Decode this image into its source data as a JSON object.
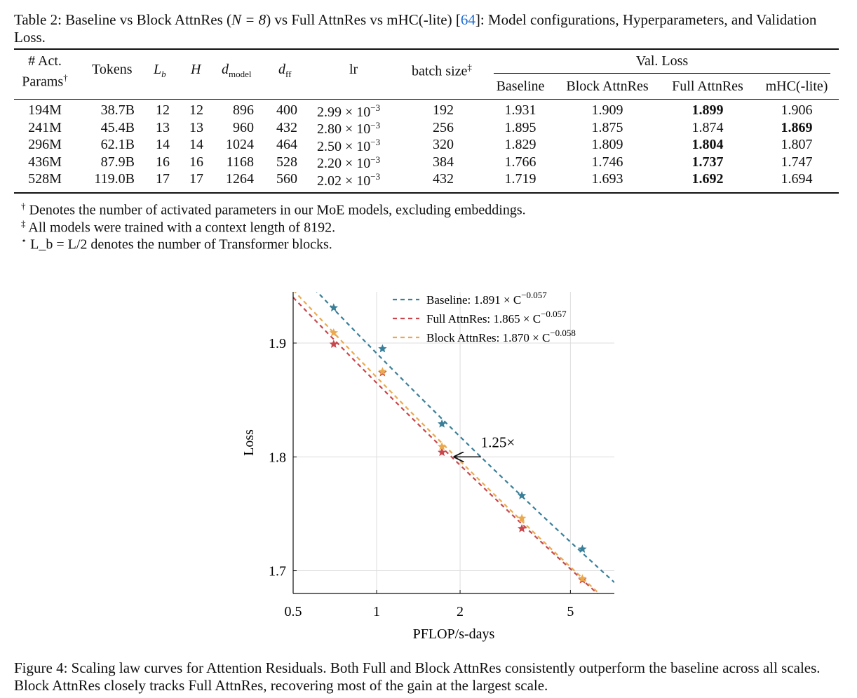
{
  "table": {
    "caption_prefix": "Table 2: Baseline vs Block AttnRes (",
    "caption_math": "N = 8",
    "caption_mid": ") vs Full AttnRes vs mHC(-lite) [",
    "caption_cite": "64",
    "caption_suffix": "]: Model configurations, Hyperparameters, and Validation Loss.",
    "headers": {
      "act_params_l1": "# Act.",
      "act_params_l2": "Params",
      "act_params_mark": "†",
      "tokens": "Tokens",
      "lb_main": "L",
      "lb_sub": "b",
      "h": "H",
      "dmodel_main": "d",
      "dmodel_sub": "model",
      "dff_main": "d",
      "dff_sub": "ff",
      "lr": "lr",
      "batch": "batch size",
      "batch_mark": "‡",
      "val_loss": "Val. Loss",
      "baseline": "Baseline",
      "block": "Block AttnRes",
      "full": "Full AttnRes",
      "mhc": "mHC(-lite)"
    },
    "rows": [
      {
        "params": "194M",
        "tokens": "38.7B",
        "lb": "12",
        "h": "12",
        "dmodel": "896",
        "dff": "400",
        "lr": "2.99 × 10",
        "lr_exp": "−3",
        "batch": "192",
        "baseline": "1.931",
        "block": "1.909",
        "full": "1.899",
        "mhc": "1.906",
        "best": "full"
      },
      {
        "params": "241M",
        "tokens": "45.4B",
        "lb": "13",
        "h": "13",
        "dmodel": "960",
        "dff": "432",
        "lr": "2.80 × 10",
        "lr_exp": "−3",
        "batch": "256",
        "baseline": "1.895",
        "block": "1.875",
        "full": "1.874",
        "mhc": "1.869",
        "best": "mhc"
      },
      {
        "params": "296M",
        "tokens": "62.1B",
        "lb": "14",
        "h": "14",
        "dmodel": "1024",
        "dff": "464",
        "lr": "2.50 × 10",
        "lr_exp": "−3",
        "batch": "320",
        "baseline": "1.829",
        "block": "1.809",
        "full": "1.804",
        "mhc": "1.807",
        "best": "full"
      },
      {
        "params": "436M",
        "tokens": "87.9B",
        "lb": "16",
        "h": "16",
        "dmodel": "1168",
        "dff": "528",
        "lr": "2.20 × 10",
        "lr_exp": "−3",
        "batch": "384",
        "baseline": "1.766",
        "block": "1.746",
        "full": "1.737",
        "mhc": "1.747",
        "best": "full"
      },
      {
        "params": "528M",
        "tokens": "119.0B",
        "lb": "17",
        "h": "17",
        "dmodel": "1264",
        "dff": "560",
        "lr": "2.02 × 10",
        "lr_exp": "−3",
        "batch": "432",
        "baseline": "1.719",
        "block": "1.693",
        "full": "1.692",
        "mhc": "1.694",
        "best": "full"
      }
    ],
    "notes": [
      {
        "mark": "†",
        "text": "Denotes the number of activated parameters in our MoE models, excluding embeddings."
      },
      {
        "mark": "‡",
        "text": "All models were trained with a context length of 8192."
      },
      {
        "mark": "⋆",
        "text": "L_b = L/2 denotes the number of Transformer blocks."
      }
    ]
  },
  "figure": {
    "caption": "Figure 4: Scaling law curves for Attention Residuals. Both Full and Block AttnRes consistently outperform the baseline across all scales. Block AttnRes closely tracks Full AttnRes, recovering most of the gain at the largest scale.",
    "annotation": "1.25×",
    "colors": {
      "baseline": "#3a7f99",
      "full": "#c7474d",
      "block": "#eba94f",
      "grid": "#dddddd"
    }
  },
  "chart_data": {
    "type": "scatter",
    "xlabel": "PFLOP/s-days",
    "ylabel": "Loss",
    "x_scale": "log",
    "xlim": [
      0.5,
      7.2
    ],
    "ylim": [
      1.68,
      1.945
    ],
    "x_ticks": [
      0.5,
      1,
      2,
      5
    ],
    "x_tick_labels": [
      "0.5",
      "1",
      "2",
      "5"
    ],
    "y_ticks": [
      1.7,
      1.8,
      1.9
    ],
    "y_tick_labels": [
      "1.7",
      "1.8",
      "1.9"
    ],
    "grid": true,
    "legend_position": "top-right",
    "series": [
      {
        "key": "baseline",
        "name": "Baseline: 1.891 × C",
        "exponent": "−0.057",
        "fit": {
          "a": 1.891,
          "b": -0.057
        },
        "x": [
          0.7,
          1.05,
          1.72,
          3.34,
          5.52
        ],
        "y": [
          1.931,
          1.895,
          1.829,
          1.766,
          1.719
        ]
      },
      {
        "key": "full",
        "name": "Full AttnRes: 1.865 × C",
        "exponent": "−0.057",
        "fit": {
          "a": 1.865,
          "b": -0.057
        },
        "x": [
          0.7,
          1.05,
          1.72,
          3.34,
          5.52
        ],
        "y": [
          1.899,
          1.874,
          1.804,
          1.737,
          1.692
        ]
      },
      {
        "key": "block",
        "name": "Block AttnRes: 1.870 × C",
        "exponent": "−0.058",
        "fit": {
          "a": 1.87,
          "b": -0.058
        },
        "x": [
          0.7,
          1.05,
          1.72,
          3.34,
          5.52
        ],
        "y": [
          1.909,
          1.875,
          1.809,
          1.746,
          1.693
        ]
      }
    ],
    "annotation": {
      "text": "1.25×",
      "from_x": 2.38,
      "to_x": 1.9,
      "y": 1.8
    }
  }
}
